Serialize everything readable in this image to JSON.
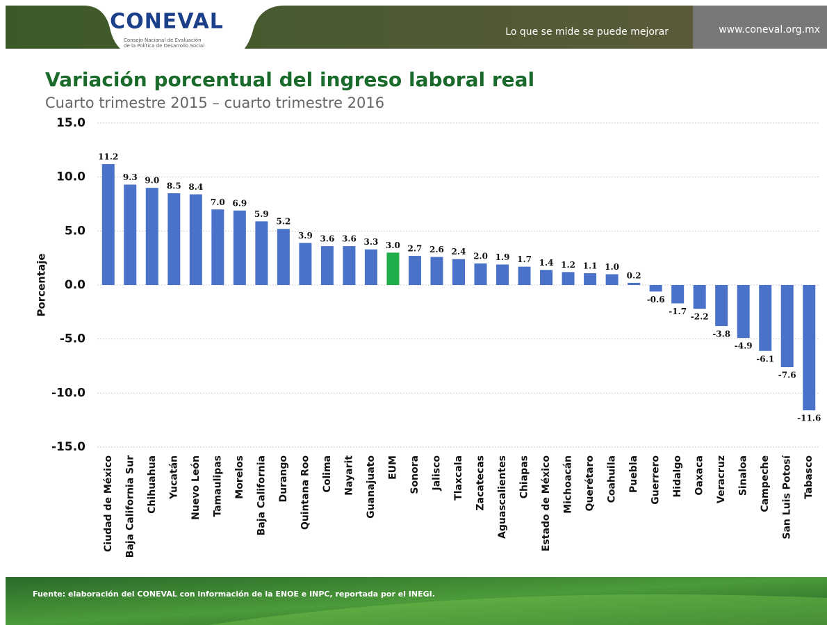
{
  "header": {
    "logo": "CONEVAL",
    "logo_subtitle": [
      "Consejo Nacional de Evaluación",
      "de la Política de Desarrollo Social"
    ],
    "slogan": "Lo que se mide se puede mejorar",
    "url": "www.coneval.org.mx"
  },
  "chart_data": {
    "type": "bar",
    "title": "Variación porcentual del ingreso laboral real",
    "subtitle": "Cuarto trimestre 2015 – cuarto trimestre 2016",
    "y_label": "Porcentaje",
    "categories": [
      "Ciudad de México",
      "Baja California Sur",
      "Chihuahua",
      "Yucatán",
      "Nuevo León",
      "Tamaulipas",
      "Morelos",
      "Baja California",
      "Durango",
      "Quintana Roo",
      "Colima",
      "Nayarit",
      "Guanajuato",
      "EUM",
      "Sonora",
      "Jalisco",
      "Tlaxcala",
      "Zacatecas",
      "Aguascalientes",
      "Chiapas",
      "Estado de México",
      "Michoacán",
      "Querétaro",
      "Coahuila",
      "Puebla",
      "Guerrero",
      "Hidalgo",
      "Oaxaca",
      "Veracruz",
      "Sinaloa",
      "Campeche",
      "San Luis Potosí",
      "Tabasco"
    ],
    "values": [
      11.2,
      9.3,
      9,
      8.5,
      8.4,
      7,
      6.9,
      5.9,
      5.2,
      3.9,
      3.6,
      3.6,
      3.3,
      3,
      2.7,
      2.6,
      2.4,
      2,
      1.9,
      1.7,
      1.4,
      1.2,
      1.1,
      1,
      0.2,
      -0.6,
      -1.7,
      -2.2,
      -3.8,
      -4.9,
      -6.1,
      -7.6,
      -11.6
    ],
    "value_labels": [
      "11.2",
      "9.3",
      "9.0",
      "8.5",
      "8.4",
      "7.0",
      "6.9",
      "5.9",
      "5.2",
      "3.9",
      "3.6",
      "3.6",
      "3.3",
      "3.0",
      "2.7",
      "2.6",
      "2.4",
      "2.0",
      "1.9",
      "1.7",
      "1.4",
      "1.2",
      "1.1",
      "1.0",
      "0.2",
      "-0.6",
      "-1.7",
      "-2.2",
      "-3.8",
      "-4.9",
      "-6.1",
      "-7.6",
      "-11.6"
    ],
    "colors": [
      "#4a72c8",
      "#4a72c8",
      "#4a72c8",
      "#4a72c8",
      "#4a72c8",
      "#4a72c8",
      "#4a72c8",
      "#4a72c8",
      "#4a72c8",
      "#4a72c8",
      "#4a72c8",
      "#4a72c8",
      "#4a72c8",
      "#1fae4a",
      "#4a72c8",
      "#4a72c8",
      "#4a72c8",
      "#4a72c8",
      "#4a72c8",
      "#4a72c8",
      "#4a72c8",
      "#4a72c8",
      "#4a72c8",
      "#4a72c8",
      "#4a72c8",
      "#4a72c8",
      "#4a72c8",
      "#4a72c8",
      "#4a72c8",
      "#4a72c8",
      "#4a72c8",
      "#4a72c8",
      "#4a72c8"
    ],
    "ylim": [
      -15,
      15
    ],
    "yticks": [
      {
        "value": -15,
        "label": "-15.0"
      },
      {
        "value": -10,
        "label": "-10.0"
      },
      {
        "value": -5,
        "label": "-5.0"
      },
      {
        "value": 0,
        "label": "0.0"
      },
      {
        "value": 5,
        "label": "5.0"
      },
      {
        "value": 10,
        "label": "10.0"
      },
      {
        "value": 15,
        "label": "15.0"
      }
    ],
    "grid": true
  },
  "footer": {
    "source": "Fuente: elaboración del CONEVAL con información de la ENOE e INPC, reportada por el INEGI."
  }
}
